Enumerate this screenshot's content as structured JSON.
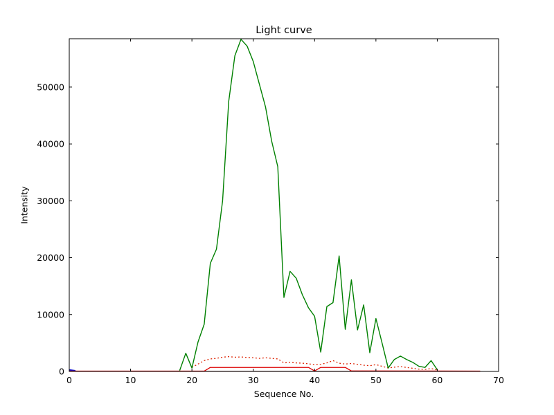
{
  "chart_data": {
    "type": "line",
    "title": "Light curve",
    "xlabel": "Sequence No.",
    "ylabel": "Intensity",
    "xlim": [
      0,
      70
    ],
    "ylim": [
      0,
      58500
    ],
    "xticks": [
      0,
      10,
      20,
      30,
      40,
      50,
      60,
      70
    ],
    "yticks": [
      0,
      10000,
      20000,
      30000,
      40000,
      50000
    ],
    "grid": false,
    "legend": "none",
    "series": [
      {
        "name": "baseline-dark-red",
        "color": "#550000",
        "style": "solid",
        "width": 1,
        "points": [
          [
            0,
            30
          ],
          [
            67,
            30
          ]
        ]
      },
      {
        "name": "blue-start-segment",
        "color": "#0000cc",
        "style": "solid",
        "width": 2,
        "points": [
          [
            0,
            260
          ],
          [
            1,
            120
          ]
        ]
      },
      {
        "name": "red-solid-low",
        "color": "#dd0000",
        "style": "solid",
        "width": 1.3,
        "points": [
          [
            0,
            60
          ],
          [
            22,
            60
          ],
          [
            23,
            700
          ],
          [
            39,
            700
          ],
          [
            40,
            90
          ],
          [
            41,
            700
          ],
          [
            45,
            700
          ],
          [
            46,
            90
          ],
          [
            67,
            60
          ]
        ]
      },
      {
        "name": "red-dotted",
        "color": "#dd2200",
        "style": "dotted",
        "width": 1.3,
        "points": [
          [
            20,
            700
          ],
          [
            21,
            1300
          ],
          [
            22,
            1900
          ],
          [
            23,
            2200
          ],
          [
            24,
            2300
          ],
          [
            25,
            2500
          ],
          [
            26,
            2600
          ],
          [
            27,
            2500
          ],
          [
            28,
            2550
          ],
          [
            29,
            2450
          ],
          [
            30,
            2400
          ],
          [
            31,
            2300
          ],
          [
            32,
            2400
          ],
          [
            33,
            2300
          ],
          [
            34,
            2200
          ],
          [
            35,
            1500
          ],
          [
            36,
            1600
          ],
          [
            37,
            1500
          ],
          [
            38,
            1450
          ],
          [
            39,
            1350
          ],
          [
            40,
            1150
          ],
          [
            41,
            1250
          ],
          [
            42,
            1500
          ],
          [
            43,
            1900
          ],
          [
            44,
            1450
          ],
          [
            45,
            1300
          ],
          [
            46,
            1400
          ],
          [
            47,
            1250
          ],
          [
            48,
            1100
          ],
          [
            49,
            1000
          ],
          [
            50,
            1200
          ],
          [
            51,
            900
          ],
          [
            52,
            600
          ],
          [
            53,
            750
          ],
          [
            54,
            850
          ],
          [
            55,
            700
          ],
          [
            56,
            550
          ],
          [
            57,
            400
          ],
          [
            58,
            350
          ],
          [
            59,
            500
          ],
          [
            60,
            250
          ]
        ]
      },
      {
        "name": "green-light-curve",
        "color": "#008000",
        "style": "solid",
        "width": 1.4,
        "points": [
          [
            18,
            150
          ],
          [
            19,
            3200
          ],
          [
            20,
            600
          ],
          [
            21,
            5200
          ],
          [
            22,
            8300
          ],
          [
            23,
            19000
          ],
          [
            24,
            21500
          ],
          [
            25,
            30000
          ],
          [
            26,
            47500
          ],
          [
            27,
            55500
          ],
          [
            28,
            58400
          ],
          [
            29,
            57200
          ],
          [
            30,
            54500
          ],
          [
            31,
            50500
          ],
          [
            32,
            46500
          ],
          [
            33,
            40500
          ],
          [
            34,
            36000
          ],
          [
            35,
            13000
          ],
          [
            36,
            17600
          ],
          [
            37,
            16400
          ],
          [
            38,
            13500
          ],
          [
            39,
            11200
          ],
          [
            40,
            9700
          ],
          [
            41,
            3400
          ],
          [
            42,
            11400
          ],
          [
            43,
            12100
          ],
          [
            44,
            20300
          ],
          [
            45,
            7400
          ],
          [
            46,
            16100
          ],
          [
            47,
            7300
          ],
          [
            48,
            11700
          ],
          [
            49,
            3300
          ],
          [
            50,
            9300
          ],
          [
            51,
            5000
          ],
          [
            52,
            600
          ],
          [
            53,
            2100
          ],
          [
            54,
            2700
          ],
          [
            55,
            2100
          ],
          [
            56,
            1600
          ],
          [
            57,
            900
          ],
          [
            58,
            700
          ],
          [
            59,
            1900
          ],
          [
            60,
            300
          ]
        ]
      }
    ]
  }
}
